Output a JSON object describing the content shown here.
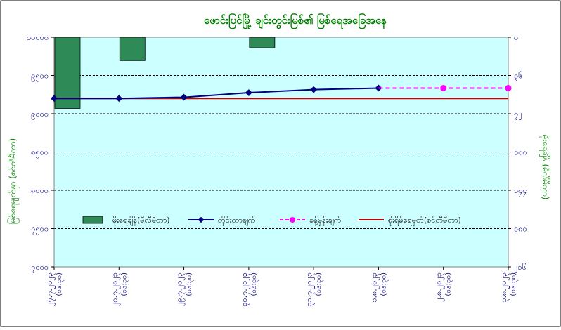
{
  "chart_data": {
    "type": "combo",
    "title": "ဖောင်းပြင်မြို့ ချင်းတွင်းမြစ်၏ မြစ်ရေအခြေအနေ",
    "ylabel_left": "မြစ်ရေမျက်နှာ (စင်တီမီတာ)",
    "ylabel_right": "မိုးရေချိန် (မီလီမီတာ)",
    "y_left": {
      "range": [
        7000,
        10000
      ],
      "ticks": [
        "၇၀၀၀",
        "၇၅၀၀",
        "၈၀၀၀",
        "၈၅၀၀",
        "၉၀၀၀",
        "၉၅၀၀",
        "၁၀၀၀၀"
      ]
    },
    "y_right": {
      "range": [
        0,
        216
      ],
      "ticks": [
        "၀",
        "၃၆",
        "၇၂",
        "၁၀၈",
        "၁၄၄",
        "၁၈၀",
        "၂၁၆"
      ]
    },
    "categories": [
      "၂၇.၇.၂၀၂၃",
      "၂၈.၇.၂၀၂၃",
      "၂၉.၇.၂၀၂၃",
      "၃၀.၇.၂၀၂၃",
      "၃၁.၇.၂၀၂၃",
      "၁.၈.၂၀၂၃",
      "၂.၈.၂၀၂၃",
      "၃.၈.၂၀၂၃"
    ],
    "category_times": [
      "(၀၆:၃၀)",
      "(၀၆:၃၀)",
      "(၀၆:၃၀)",
      "(၀၆:၃၀)",
      "(၀၆:၃၀)",
      "(၀၆:၃၀)",
      "(၀၆:၃၀)",
      "(၀၆:၃၀)"
    ],
    "series": [
      {
        "name": "မိုးရေချိန်(မီလီမီတာ)",
        "kind": "bar",
        "axis": "right",
        "color": "#2e8b57",
        "values": [
          67,
          22,
          null,
          10,
          null,
          null,
          null,
          null
        ]
      },
      {
        "name": "တိုင်းတာချက်",
        "kind": "line",
        "axis": "left",
        "color": "#000080",
        "values": [
          9200,
          9200,
          9215,
          9275,
          9315,
          9335,
          null,
          null
        ]
      },
      {
        "name": "ခန့်မှန်းချက်",
        "kind": "dashed-line",
        "axis": "left",
        "color": "#ff00ff",
        "values": [
          null,
          null,
          null,
          null,
          null,
          9335,
          9335,
          9335
        ]
      },
      {
        "name": "စိုးရိမ်ရေမှတ်(စင်တီမီတာ)",
        "kind": "hline",
        "axis": "left",
        "color": "#c00000",
        "value": 9200
      }
    ],
    "colors": {
      "plot_bg": "#ccffff",
      "grid": "#000000",
      "title": "#008000",
      "axis_label": "#008000",
      "tick_label": "#000080"
    },
    "grid": true,
    "legend_position": "inside-bottom"
  }
}
